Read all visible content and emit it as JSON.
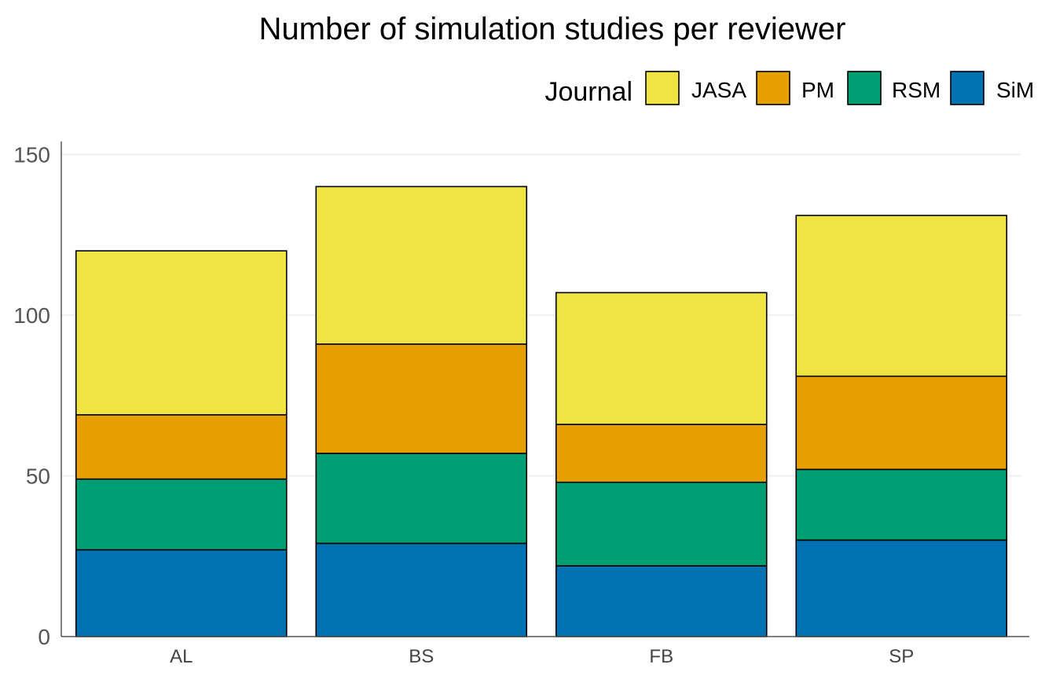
{
  "chart_data": {
    "type": "bar",
    "stacked": true,
    "title": "Number of simulation studies per reviewer",
    "xlabel": "",
    "ylabel": "",
    "categories": [
      "AL",
      "BS",
      "FB",
      "SP"
    ],
    "ylim": [
      0,
      155
    ],
    "yticks": [
      0,
      50,
      100,
      150
    ],
    "grid": true,
    "legend_title": "Journal",
    "legend_position": "top-right",
    "series": [
      {
        "name": "SiM",
        "color": "#0072B2",
        "values": [
          27,
          29,
          22,
          30
        ]
      },
      {
        "name": "RSM",
        "color": "#009E73",
        "values": [
          22,
          28,
          26,
          22
        ]
      },
      {
        "name": "PM",
        "color": "#E69F00",
        "values": [
          20,
          34,
          18,
          29
        ]
      },
      {
        "name": "JASA",
        "color": "#F0E442",
        "values": [
          51,
          49,
          41,
          50
        ]
      }
    ],
    "legend_order": [
      "JASA",
      "PM",
      "RSM",
      "SiM"
    ]
  }
}
